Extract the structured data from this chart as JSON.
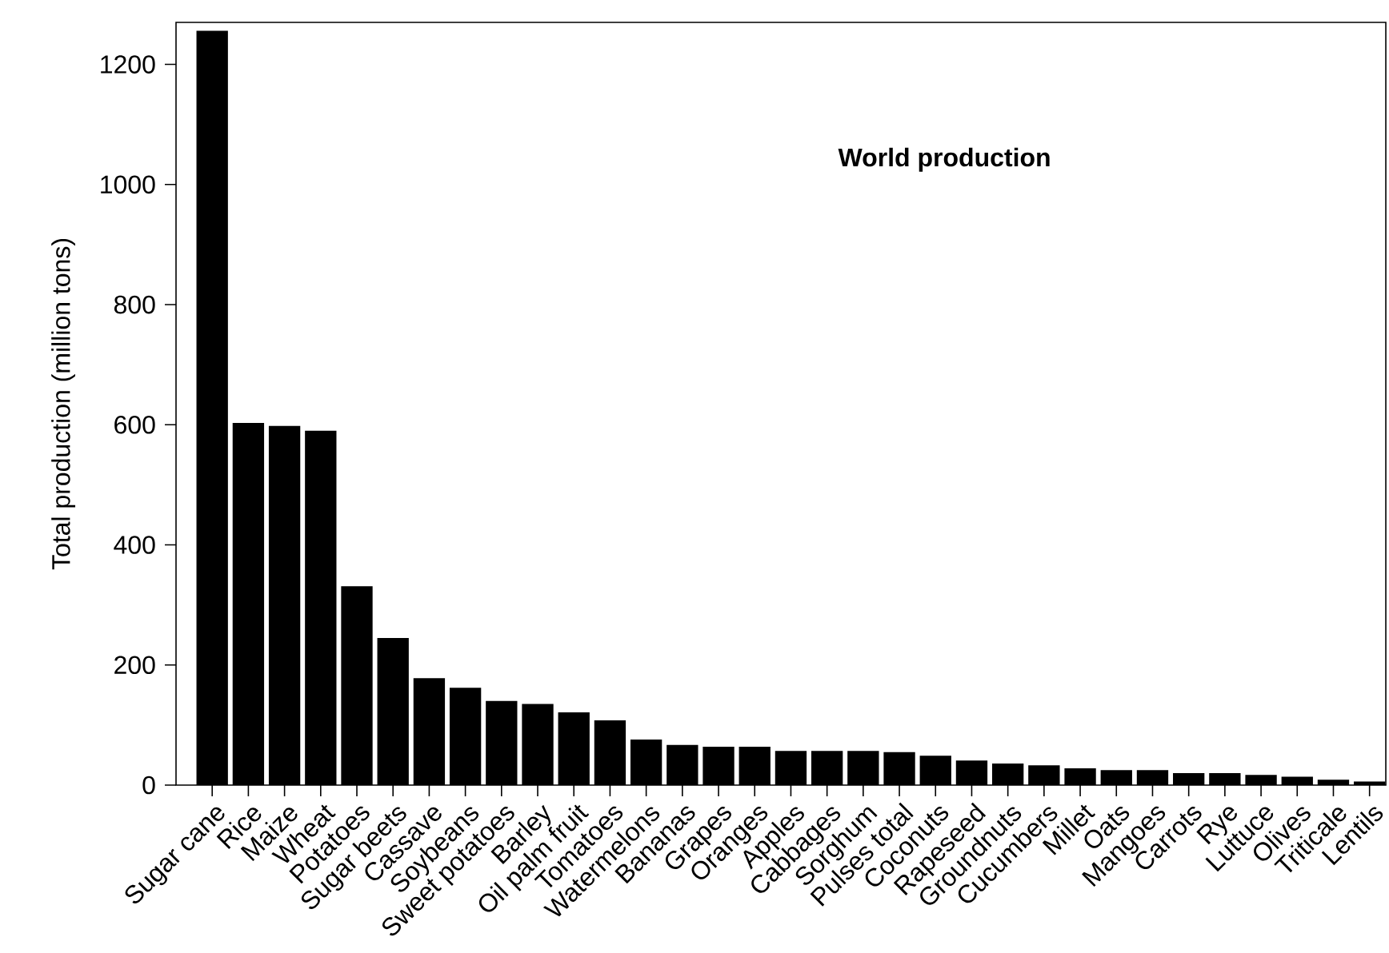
{
  "chart_data": {
    "type": "bar",
    "ylabel": "Total production (million tons)",
    "annotations": [
      "**World production**"
    ],
    "categories": [
      "Sugar cane",
      "Rice",
      "Maize",
      "Wheat",
      "Potatoes",
      "Sugar beets",
      "Cassave",
      "Soybeans",
      "Sweet potatoes",
      "Barley",
      "Oil palm fruit",
      "Tomatoes",
      "Watermelons",
      "Bananas",
      "Grapes",
      "Oranges",
      "Apples",
      "Cabbages",
      "Sorghum",
      "Pulses total",
      "Coconuts",
      "Rapeseed",
      "Groundnuts",
      "Cucumbers",
      "Millet",
      "Oats",
      "Mangoes",
      "Carrots",
      "Rye",
      "Luttuce",
      "Olives",
      "Triticale",
      "Lentils"
    ],
    "values": [
      1256,
      603,
      598,
      590,
      331,
      245,
      178,
      162,
      140,
      135,
      121,
      108,
      76,
      67,
      64,
      64,
      57,
      57,
      57,
      55,
      49,
      41,
      36,
      33,
      28,
      25,
      25,
      20,
      20,
      17,
      14,
      9,
      6
    ],
    "color": "#000000",
    "ylim": [
      0,
      1270
    ],
    "yticks": [
      0,
      200,
      400,
      600,
      800,
      1000,
      1200
    ],
    "grid": false
  }
}
